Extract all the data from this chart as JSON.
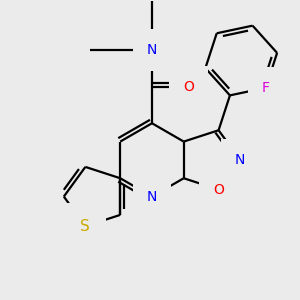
{
  "background_color": "#ebebeb",
  "atom_colors": {
    "N": "#0000ff",
    "O": "#ff0000",
    "S": "#ccaa00",
    "F": "#dd00dd"
  },
  "bond_color": "#000000",
  "bond_lw": 1.6,
  "figsize": [
    3.0,
    3.0
  ],
  "dpi": 100
}
